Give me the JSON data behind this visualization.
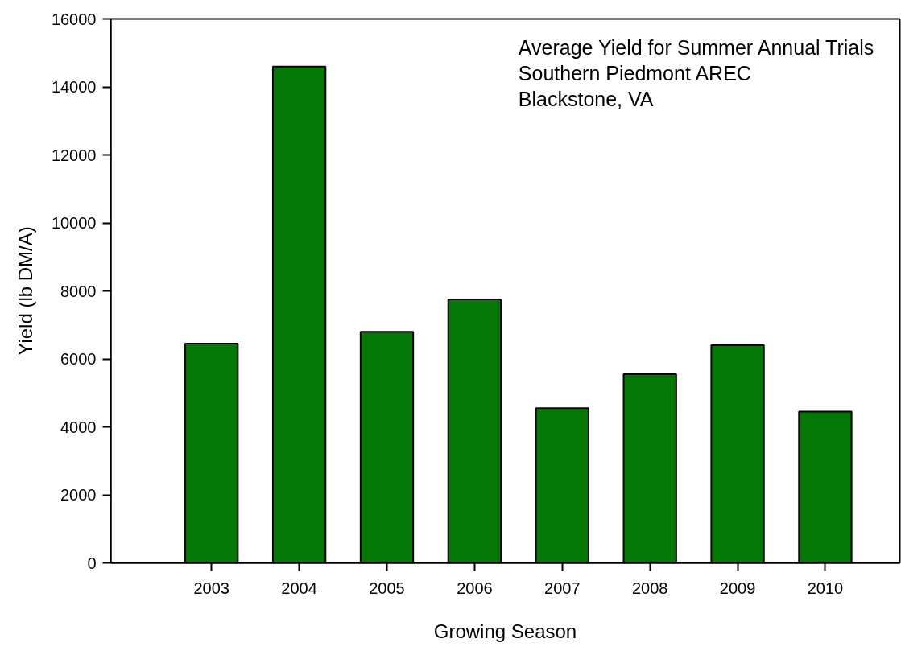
{
  "chart_data": {
    "type": "bar",
    "title": "Average Yield for Summer Annual Trials\nSouthern Piedmont AREC\nBlackstone, VA",
    "xlabel": "Growing Season",
    "ylabel": "Yield (lb DM/A)",
    "categories": [
      "2003",
      "2004",
      "2005",
      "2006",
      "2007",
      "2008",
      "2009",
      "2010"
    ],
    "values": [
      6450,
      14600,
      6800,
      7750,
      4550,
      5550,
      6400,
      4450
    ],
    "color": "#047804",
    "ylim": [
      0,
      16000
    ],
    "yticks": [
      0,
      2000,
      4000,
      6000,
      8000,
      10000,
      12000,
      14000,
      16000
    ],
    "grid": false
  }
}
